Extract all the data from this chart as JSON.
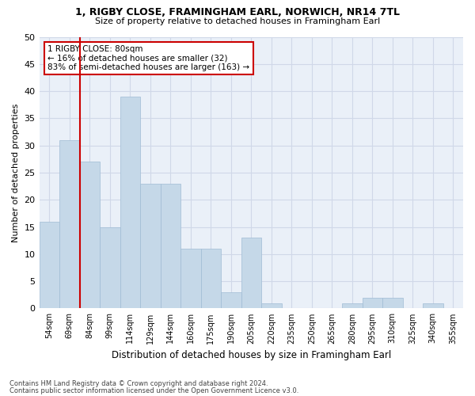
{
  "title1": "1, RIGBY CLOSE, FRAMINGHAM EARL, NORWICH, NR14 7TL",
  "title2": "Size of property relative to detached houses in Framingham Earl",
  "xlabel": "Distribution of detached houses by size in Framingham Earl",
  "ylabel": "Number of detached properties",
  "categories": [
    "54sqm",
    "69sqm",
    "84sqm",
    "99sqm",
    "114sqm",
    "129sqm",
    "144sqm",
    "160sqm",
    "175sqm",
    "190sqm",
    "205sqm",
    "220sqm",
    "235sqm",
    "250sqm",
    "265sqm",
    "280sqm",
    "295sqm",
    "310sqm",
    "325sqm",
    "340sqm",
    "355sqm"
  ],
  "values": [
    16,
    31,
    27,
    15,
    39,
    23,
    23,
    11,
    11,
    3,
    13,
    1,
    0,
    0,
    0,
    1,
    2,
    2,
    0,
    1,
    0
  ],
  "bar_color": "#c5d8e8",
  "bar_edge_color": "#a0bcd4",
  "bar_width": 1.0,
  "vline_x": 1.5,
  "vline_color": "#cc0000",
  "annotation_text": "1 RIGBY CLOSE: 80sqm\n← 16% of detached houses are smaller (32)\n83% of semi-detached houses are larger (163) →",
  "annotation_box_color": "#ffffff",
  "annotation_box_edge": "#cc0000",
  "ylim": [
    0,
    50
  ],
  "yticks": [
    0,
    5,
    10,
    15,
    20,
    25,
    30,
    35,
    40,
    45,
    50
  ],
  "grid_color": "#d0d8e8",
  "background_color": "#eaf0f8",
  "footer1": "Contains HM Land Registry data © Crown copyright and database right 2024.",
  "footer2": "Contains public sector information licensed under the Open Government Licence v3.0."
}
